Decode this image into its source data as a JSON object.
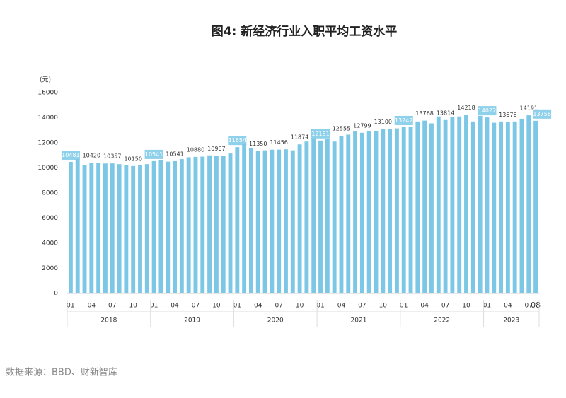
{
  "chart_data": {
    "type": "bar",
    "title": "图4: 新经济行业入职平均工资水平",
    "y_label": "(元)",
    "source": "数据来源：BBD、财新智库",
    "color": "#7cc7e6",
    "categories": [
      "01",
      null,
      null,
      "04",
      null,
      null,
      "07",
      null,
      null,
      "10",
      null,
      null,
      "01",
      null,
      null,
      "04",
      null,
      null,
      "07",
      null,
      null,
      "10",
      null,
      null,
      "01",
      null,
      null,
      "04",
      null,
      null,
      "07",
      null,
      null,
      "10",
      null,
      null,
      "01",
      null,
      null,
      "04",
      null,
      null,
      "07",
      null,
      null,
      "10",
      null,
      null,
      "01",
      null,
      null,
      "04",
      null,
      null,
      "07",
      null,
      null,
      "10",
      null,
      null,
      "01",
      null,
      null,
      "04",
      null,
      null,
      "07",
      "08"
    ],
    "years": [
      "2018",
      "2019",
      "2020",
      "2021",
      "2022",
      "2023"
    ],
    "values": [
      10481,
      10700,
      10250,
      10420,
      10400,
      10350,
      10357,
      10300,
      10200,
      10150,
      10250,
      10300,
      10541,
      10600,
      10500,
      10541,
      10700,
      10850,
      10880,
      10900,
      11000,
      10967,
      10950,
      11150,
      11654,
      11950,
      11600,
      11350,
      11400,
      11450,
      11456,
      11480,
      11400,
      11874,
      12100,
      12600,
      12181,
      12300,
      12100,
      12555,
      12650,
      12900,
      12799,
      12900,
      12950,
      13100,
      13100,
      13150,
      13242,
      13300,
      13700,
      13768,
      13550,
      14100,
      13814,
      14050,
      14100,
      14218,
      13700,
      14150,
      14022,
      13600,
      13700,
      13676,
      13700,
      13900,
      14191,
      13756
    ],
    "value_labels": [
      "10481",
      null,
      null,
      "10420",
      null,
      null,
      "10357",
      null,
      null,
      "10150",
      null,
      null,
      "10541",
      null,
      null,
      "10541",
      null,
      null,
      "10880",
      null,
      null,
      "10967",
      null,
      null,
      "11654",
      null,
      null,
      "11350",
      null,
      null,
      "11456",
      null,
      null,
      "11874",
      null,
      null,
      "12181",
      null,
      null,
      "12555",
      null,
      null,
      "12799",
      null,
      null,
      "13100",
      null,
      null,
      "13242",
      null,
      null,
      "13768",
      null,
      null,
      "13814",
      null,
      null,
      "14218",
      null,
      null,
      "14022",
      null,
      null,
      "13676",
      null,
      null,
      "14191",
      "13756"
    ],
    "ylim": [
      0,
      16000
    ],
    "yticks": [
      0,
      2000,
      4000,
      6000,
      8000,
      10000,
      12000,
      14000,
      16000
    ]
  }
}
